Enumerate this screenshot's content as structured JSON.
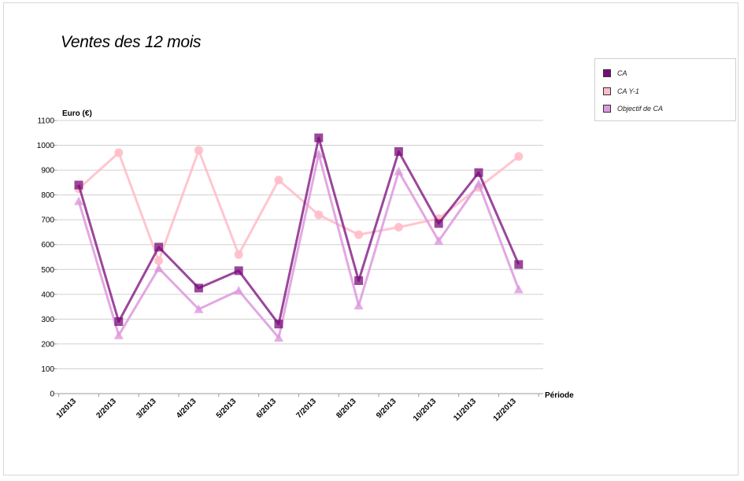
{
  "chart_data": {
    "type": "line",
    "title": "Ventes des 12 mois",
    "ylabel": "Euro (€)",
    "xlabel": "Période",
    "ylim": [
      0,
      1100
    ],
    "yticks": [
      0,
      100,
      200,
      300,
      400,
      500,
      600,
      700,
      800,
      900,
      1000,
      1100
    ],
    "grid": true,
    "legend_position": "top-right",
    "categories": [
      "1/2013",
      "2/2013",
      "3/2013",
      "4/2013",
      "5/2013",
      "6/2013",
      "7/2013",
      "8/2013",
      "9/2013",
      "10/2013",
      "11/2013",
      "12/2013"
    ],
    "series": [
      {
        "name": "CA",
        "color": "#7a0a7a",
        "marker": "square",
        "values": [
          840,
          290,
          590,
          425,
          495,
          280,
          1030,
          455,
          975,
          685,
          890,
          520
        ]
      },
      {
        "name": "CA Y-1",
        "color": "#ffbcc8",
        "marker": "circle",
        "values": [
          825,
          970,
          535,
          980,
          560,
          860,
          720,
          640,
          670,
          705,
          830,
          955
        ]
      },
      {
        "name": "Objectif de CA",
        "color": "#dd99dd",
        "marker": "triangle",
        "values": [
          775,
          235,
          505,
          340,
          415,
          225,
          965,
          355,
          895,
          615,
          845,
          420
        ]
      }
    ]
  }
}
